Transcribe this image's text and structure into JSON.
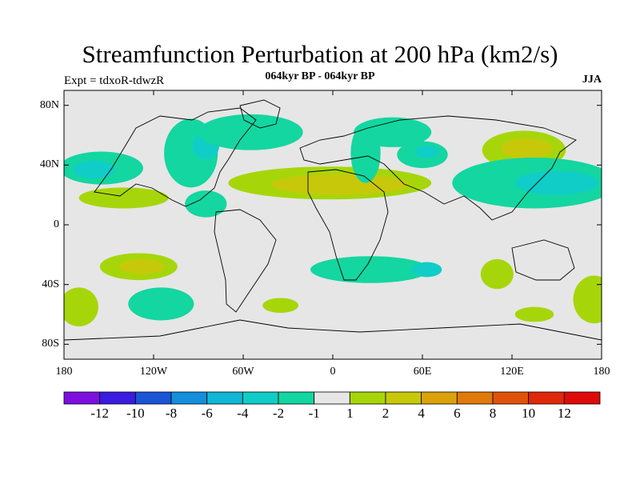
{
  "title": "Streamfunction Perturbation at 200 hPa (km2/s)",
  "subtitle": "064kyr BP - 064kyr BP",
  "experiment": "Expt = tdxoR-tdwzR",
  "season": "JJA",
  "map": {
    "projection": "cylindrical-equidistant",
    "lon_range": [
      -180,
      180
    ],
    "lat_range": [
      -90,
      90
    ],
    "background_color": "#e6e6e6",
    "lat_ticks": [
      {
        "value": 80,
        "label": "80N"
      },
      {
        "value": 40,
        "label": "40N"
      },
      {
        "value": 0,
        "label": "0"
      },
      {
        "value": -40,
        "label": "40S"
      },
      {
        "value": -80,
        "label": "80S"
      }
    ],
    "lon_ticks": [
      {
        "value": -180,
        "label": "180"
      },
      {
        "value": -120,
        "label": "120W"
      },
      {
        "value": -60,
        "label": "60W"
      },
      {
        "value": 0,
        "label": "0"
      },
      {
        "value": 60,
        "label": "60E"
      },
      {
        "value": 120,
        "label": "120E"
      },
      {
        "value": 180,
        "label": "180"
      }
    ],
    "anomalies": [
      {
        "lon": -155,
        "lat": 38,
        "rlon": 28,
        "rlat": 11,
        "level": -1
      },
      {
        "lon": -160,
        "lat": 37,
        "rlon": 14,
        "rlat": 6,
        "level": -2
      },
      {
        "lon": -140,
        "lat": 18,
        "rlon": 30,
        "rlat": 7,
        "level": 1
      },
      {
        "lon": -95,
        "lat": 48,
        "rlon": 18,
        "rlat": 23,
        "level": -1
      },
      {
        "lon": -85,
        "lat": 53,
        "rlon": 9,
        "rlat": 9,
        "level": -2
      },
      {
        "lon": -55,
        "lat": 62,
        "rlon": 35,
        "rlat": 12,
        "level": -1
      },
      {
        "lon": -85,
        "lat": 14,
        "rlon": 14,
        "rlat": 9,
        "level": -1
      },
      {
        "lon": -2,
        "lat": 28,
        "rlon": 68,
        "rlat": 11,
        "level": 1
      },
      {
        "lon": 5,
        "lat": 27,
        "rlon": 46,
        "rlat": 7,
        "level": 2
      },
      {
        "lon": 40,
        "lat": 62,
        "rlon": 26,
        "rlat": 10,
        "level": -1
      },
      {
        "lon": 22,
        "lat": 48,
        "rlon": 10,
        "rlat": 20,
        "level": -1
      },
      {
        "lon": 60,
        "lat": 47,
        "rlon": 17,
        "rlat": 9,
        "level": -1
      },
      {
        "lon": 63,
        "lat": 49,
        "rlon": 8,
        "rlat": 4,
        "level": -2
      },
      {
        "lon": 128,
        "lat": 50,
        "rlon": 28,
        "rlat": 13,
        "level": 1
      },
      {
        "lon": 130,
        "lat": 51,
        "rlon": 17,
        "rlat": 7,
        "level": 2
      },
      {
        "lon": 135,
        "lat": 28,
        "rlon": 55,
        "rlat": 17,
        "level": -1
      },
      {
        "lon": 150,
        "lat": 28,
        "rlon": 28,
        "rlat": 8,
        "level": -2
      },
      {
        "lon": -130,
        "lat": -28,
        "rlon": 26,
        "rlat": 9,
        "level": 1
      },
      {
        "lon": -128,
        "lat": -28,
        "rlon": 15,
        "rlat": 5,
        "level": 2
      },
      {
        "lon": -115,
        "lat": -53,
        "rlon": 22,
        "rlat": 11,
        "level": -1
      },
      {
        "lon": -170,
        "lat": -55,
        "rlon": 13,
        "rlat": 13,
        "level": 1
      },
      {
        "lon": -35,
        "lat": -54,
        "rlon": 12,
        "rlat": 5,
        "level": 1
      },
      {
        "lon": 25,
        "lat": -30,
        "rlon": 40,
        "rlat": 9,
        "level": -1
      },
      {
        "lon": 63,
        "lat": -30,
        "rlon": 10,
        "rlat": 5,
        "level": -2
      },
      {
        "lon": 110,
        "lat": -33,
        "rlon": 11,
        "rlat": 10,
        "level": 1
      },
      {
        "lon": 135,
        "lat": -60,
        "rlon": 13,
        "rlat": 5,
        "level": 1
      },
      {
        "lon": 175,
        "lat": -50,
        "rlon": 14,
        "rlat": 16,
        "level": 1
      }
    ]
  },
  "colorbar": {
    "colors": [
      "#7d10e0",
      "#3a1ce0",
      "#1a55d8",
      "#138fdc",
      "#0fb6d6",
      "#10cdc8",
      "#14d6a0",
      "#e6e6e6",
      "#a6d60a",
      "#c8c80a",
      "#dca20a",
      "#e07a0a",
      "#e0520a",
      "#e0280a",
      "#e00a0a"
    ],
    "labels": [
      "-12",
      "-10",
      "-8",
      "-6",
      "-4",
      "-2",
      "-1",
      "1",
      "2",
      "4",
      "6",
      "8",
      "10",
      "12"
    ]
  }
}
